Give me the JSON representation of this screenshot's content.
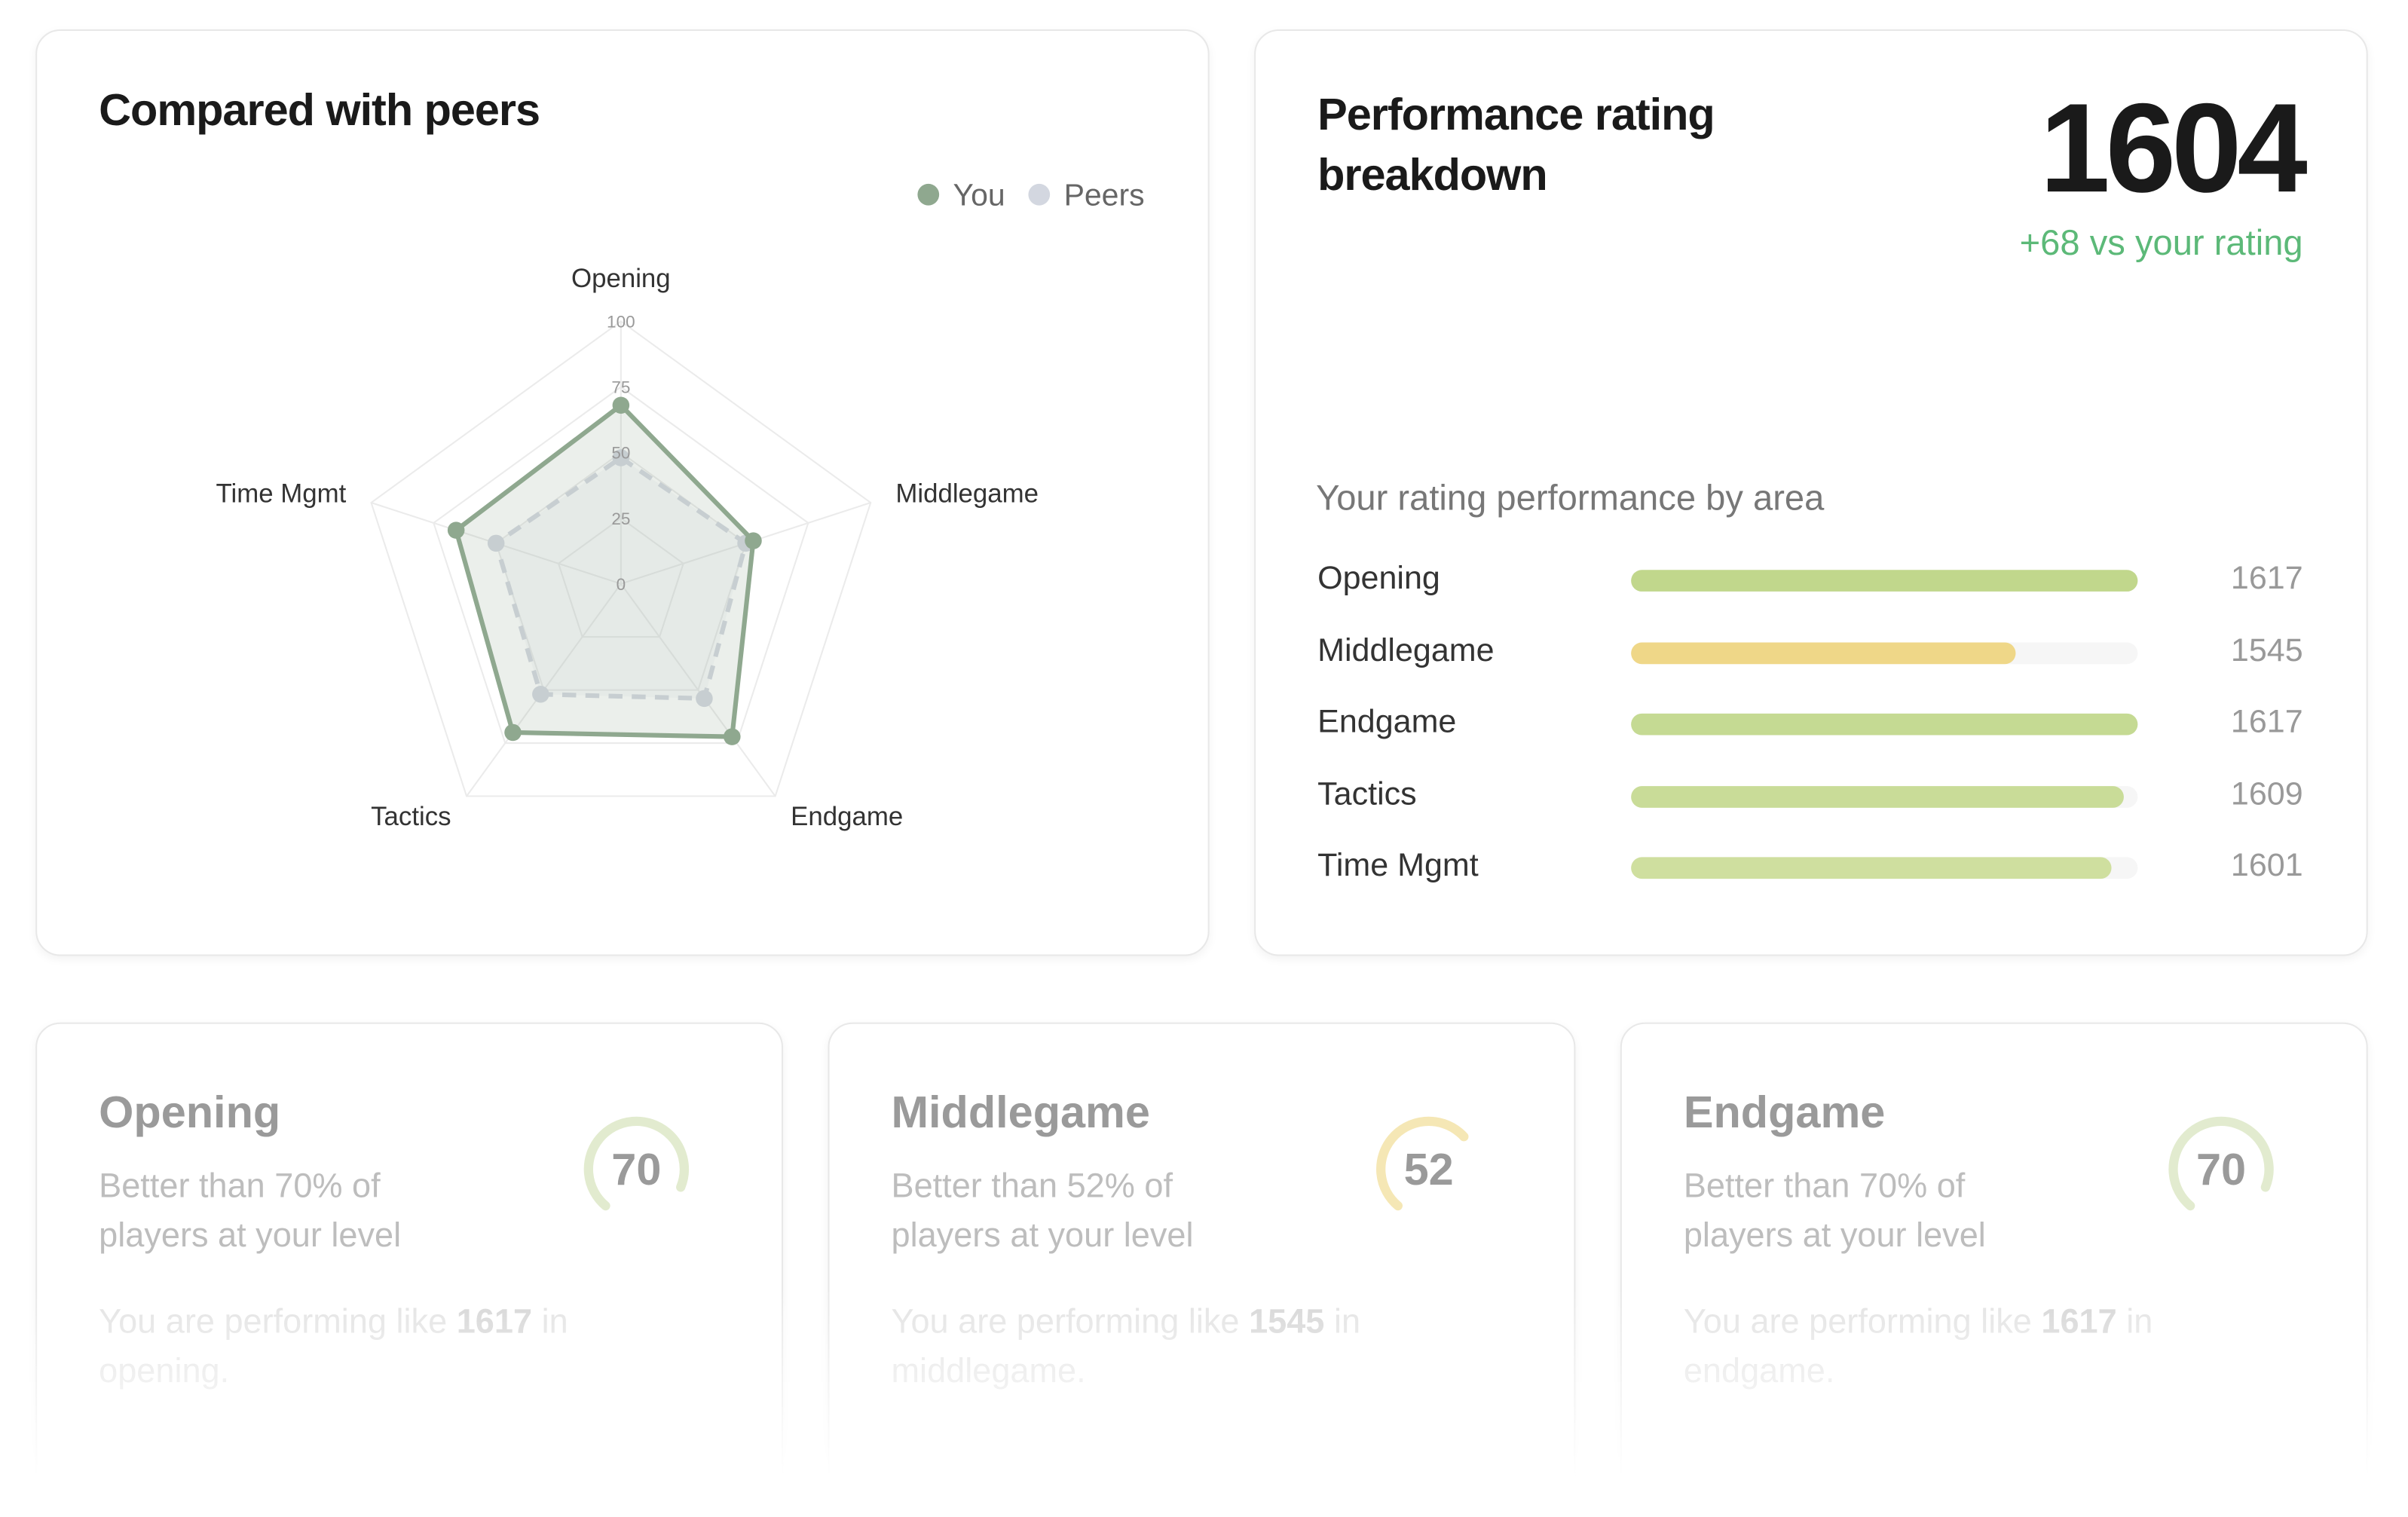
{
  "chart_data": {
    "type": "radar",
    "title": "Compared with peers",
    "categories": [
      "Opening",
      "Middlegame",
      "Endgame",
      "Tactics",
      "Time Mgmt"
    ],
    "series": [
      {
        "name": "You",
        "color": "#8fa88f",
        "values": [
          68,
          53,
          72,
          70,
          66
        ]
      },
      {
        "name": "Peers",
        "color": "#d3d7e0",
        "values": [
          48,
          50,
          54,
          52,
          50
        ]
      }
    ],
    "rlim": [
      0,
      100
    ],
    "rticks": [
      0,
      25,
      50,
      75,
      100
    ],
    "grid": true,
    "legend": "top-right"
  },
  "rating_card": {
    "title": "Performance rating breakdown",
    "rating": 1604,
    "delta": "+68 vs your rating",
    "subtitle": "Your rating performance by area",
    "chart_data": {
      "type": "hbar",
      "categories": [
        "Opening",
        "Middlegame",
        "Endgame",
        "Tactics",
        "Time Mgmt"
      ],
      "values": [
        1617,
        1545,
        1617,
        1609,
        1601
      ],
      "colors": [
        "#c1d78c",
        "#efd788",
        "#c5da93",
        "#c9dc98",
        "#cfdf9f"
      ],
      "xlim": [
        1317,
        1617
      ]
    }
  },
  "area_cards": [
    {
      "title": "Opening",
      "percentile": 70,
      "ring_color": "#e2ebcf",
      "text": "Better than 70% of players at your level",
      "prefix": "You are performing like",
      "rating": 1617,
      "suffix": "in opening."
    },
    {
      "title": "Middlegame",
      "percentile": 52,
      "ring_color": "#f5e7b5",
      "text": "Better than 52% of players at your level",
      "prefix": "You are performing like",
      "rating": 1545,
      "suffix": "in middlegame."
    },
    {
      "title": "Endgame",
      "percentile": 70,
      "ring_color": "#e2ebcf",
      "text": "Better than 70% of players at your level",
      "prefix": "You are performing like",
      "rating": 1617,
      "suffix": "in endgame."
    }
  ]
}
